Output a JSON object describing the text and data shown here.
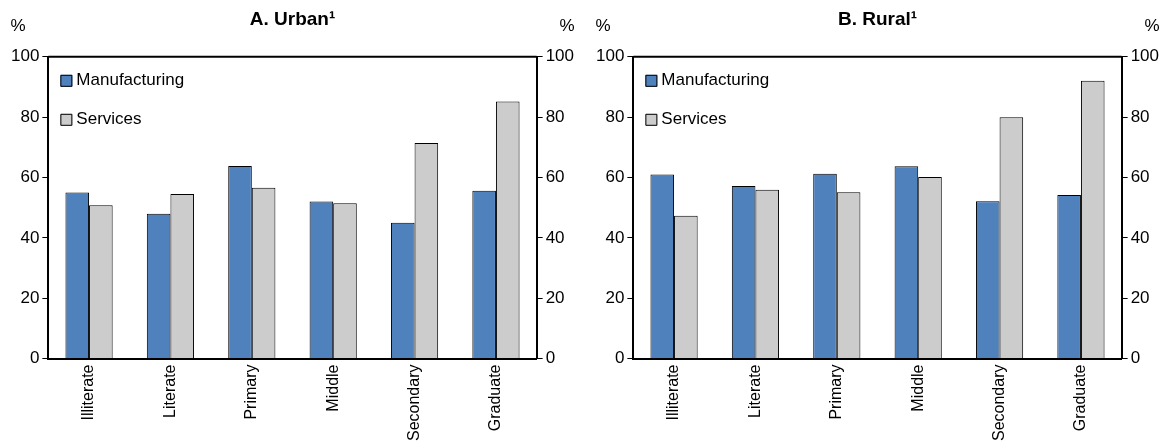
{
  "chart_data": [
    {
      "type": "bar",
      "title": "A. Urban¹",
      "ylabel": "%",
      "y2label": "%",
      "categories": [
        "Illiterate",
        "Literate",
        "Primary",
        "Middle",
        "Secondary",
        "Graduate"
      ],
      "series": [
        {
          "name": "Manufacturing",
          "color": "#4f81bd",
          "values": [
            55,
            48,
            63.8,
            52,
            45,
            55.6
          ]
        },
        {
          "name": "Services",
          "color": "#cccccc",
          "values": [
            50.8,
            54.5,
            56.6,
            51.5,
            71.4,
            85.2
          ]
        }
      ],
      "ylim": [
        0,
        100
      ],
      "yticks": [
        0,
        20,
        40,
        60,
        80,
        100
      ],
      "y2lim": [
        0,
        100
      ],
      "y2ticks": [
        0,
        20,
        40,
        60,
        80,
        100
      ],
      "legend": "top left"
    },
    {
      "type": "bar",
      "title": "B. Rural¹",
      "ylabel": "%",
      "y2label": "%",
      "categories": [
        "Illiterate",
        "Literate",
        "Primary",
        "Middle",
        "Secondary",
        "Graduate"
      ],
      "series": [
        {
          "name": "Manufacturing",
          "color": "#4f81bd",
          "values": [
            61,
            57.2,
            61.2,
            63.7,
            52.1,
            54.2
          ]
        },
        {
          "name": "Services",
          "color": "#cccccc",
          "values": [
            47.3,
            55.9,
            55.1,
            60.2,
            80,
            92.1
          ]
        }
      ],
      "ylim": [
        0,
        100
      ],
      "yticks": [
        0,
        20,
        40,
        60,
        80,
        100
      ],
      "y2lim": [
        0,
        100
      ],
      "y2ticks": [
        0,
        20,
        40,
        60,
        80,
        100
      ],
      "legend": "top left"
    }
  ]
}
